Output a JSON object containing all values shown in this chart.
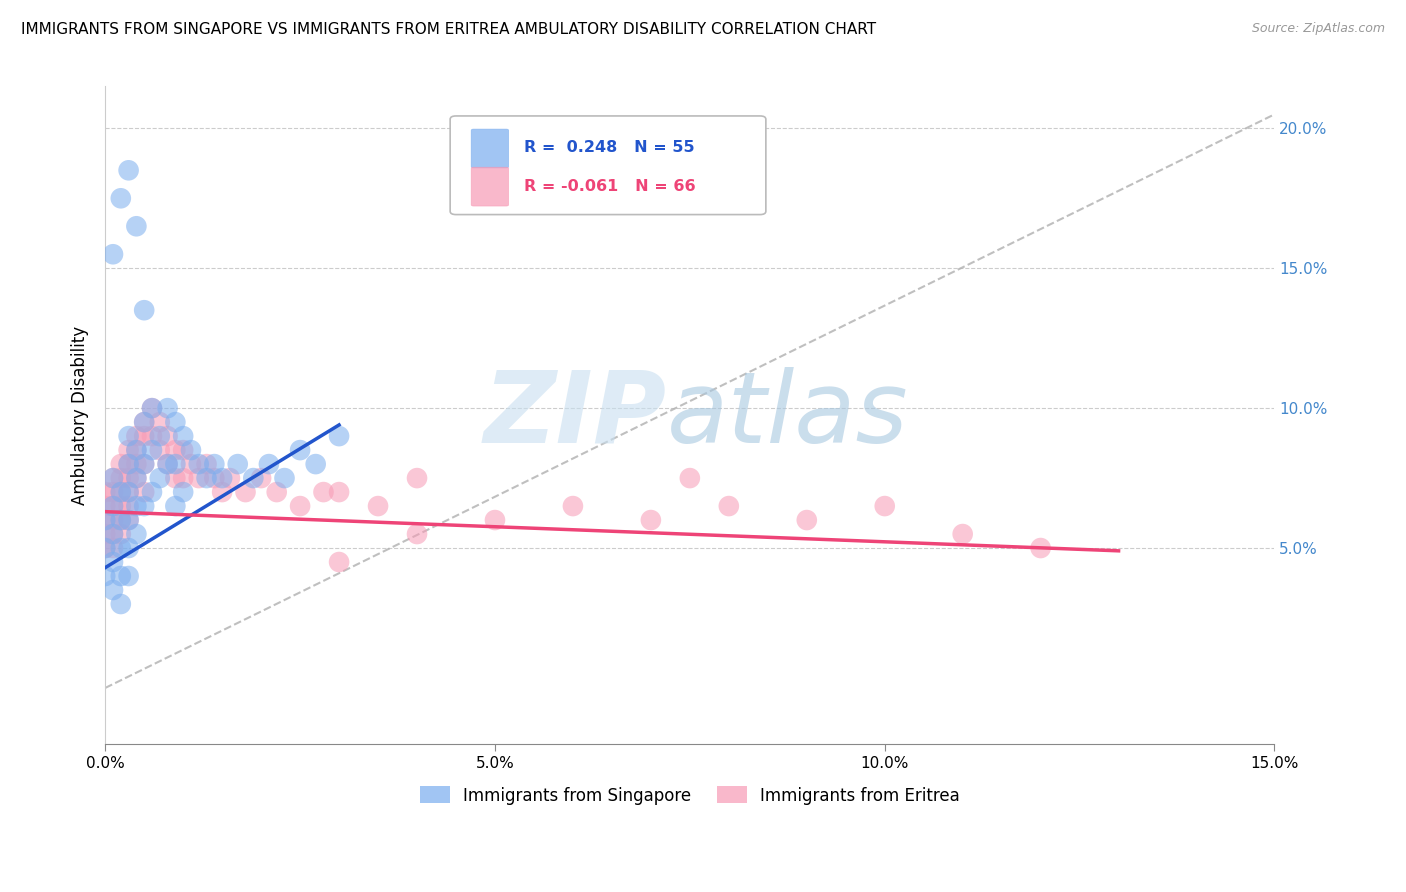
{
  "title": "IMMIGRANTS FROM SINGAPORE VS IMMIGRANTS FROM ERITREA AMBULATORY DISABILITY CORRELATION CHART",
  "source": "Source: ZipAtlas.com",
  "ylabel": "Ambulatory Disability",
  "xlim": [
    0.0,
    0.15
  ],
  "ylim": [
    -0.02,
    0.215
  ],
  "xticks": [
    0.0,
    0.05,
    0.1,
    0.15
  ],
  "xtick_labels": [
    "0.0%",
    "5.0%",
    "10.0%",
    "15.0%"
  ],
  "yticks": [
    0.05,
    0.1,
    0.15,
    0.2
  ],
  "ytick_labels_right": [
    "5.0%",
    "10.0%",
    "15.0%",
    "20.0%"
  ],
  "singapore_color": "#7aadee",
  "eritrea_color": "#f79ab5",
  "singapore_line_color": "#2255cc",
  "eritrea_line_color": "#ee4477",
  "singapore_R": 0.248,
  "singapore_N": 55,
  "eritrea_R": -0.061,
  "eritrea_N": 66,
  "sg_line_x0": 0.0,
  "sg_line_y0": 0.043,
  "sg_line_x1": 0.03,
  "sg_line_y1": 0.094,
  "er_line_x0": 0.0,
  "er_line_y0": 0.063,
  "er_line_x1": 0.13,
  "er_line_y1": 0.049,
  "diag_line_x0": 0.0,
  "diag_line_y0": 0.0,
  "diag_line_x1": 0.15,
  "diag_line_y1": 0.205,
  "singapore_x": [
    0.0,
    0.0,
    0.0,
    0.001,
    0.001,
    0.001,
    0.001,
    0.001,
    0.002,
    0.002,
    0.002,
    0.002,
    0.002,
    0.003,
    0.003,
    0.003,
    0.003,
    0.003,
    0.003,
    0.004,
    0.004,
    0.004,
    0.004,
    0.005,
    0.005,
    0.005,
    0.006,
    0.006,
    0.006,
    0.007,
    0.007,
    0.008,
    0.008,
    0.009,
    0.009,
    0.009,
    0.01,
    0.01,
    0.011,
    0.012,
    0.013,
    0.014,
    0.015,
    0.017,
    0.019,
    0.021,
    0.023,
    0.025,
    0.027,
    0.03,
    0.003,
    0.004,
    0.005,
    0.002,
    0.001
  ],
  "singapore_y": [
    0.06,
    0.05,
    0.04,
    0.075,
    0.065,
    0.055,
    0.045,
    0.035,
    0.07,
    0.06,
    0.05,
    0.04,
    0.03,
    0.09,
    0.08,
    0.07,
    0.06,
    0.05,
    0.04,
    0.085,
    0.075,
    0.065,
    0.055,
    0.095,
    0.08,
    0.065,
    0.1,
    0.085,
    0.07,
    0.09,
    0.075,
    0.1,
    0.08,
    0.095,
    0.08,
    0.065,
    0.09,
    0.07,
    0.085,
    0.08,
    0.075,
    0.08,
    0.075,
    0.08,
    0.075,
    0.08,
    0.075,
    0.085,
    0.08,
    0.09,
    0.185,
    0.165,
    0.135,
    0.175,
    0.155
  ],
  "eritrea_x": [
    0.0,
    0.0,
    0.0,
    0.0,
    0.0,
    0.001,
    0.001,
    0.001,
    0.001,
    0.001,
    0.001,
    0.002,
    0.002,
    0.002,
    0.002,
    0.002,
    0.002,
    0.003,
    0.003,
    0.003,
    0.003,
    0.003,
    0.003,
    0.004,
    0.004,
    0.004,
    0.004,
    0.005,
    0.005,
    0.005,
    0.005,
    0.006,
    0.006,
    0.007,
    0.007,
    0.008,
    0.008,
    0.009,
    0.009,
    0.01,
    0.01,
    0.011,
    0.012,
    0.013,
    0.014,
    0.015,
    0.016,
    0.018,
    0.02,
    0.022,
    0.025,
    0.028,
    0.03,
    0.035,
    0.04,
    0.05,
    0.06,
    0.07,
    0.08,
    0.09,
    0.1,
    0.11,
    0.12,
    0.03,
    0.04,
    0.075
  ],
  "eritrea_y": [
    0.07,
    0.065,
    0.06,
    0.055,
    0.05,
    0.075,
    0.07,
    0.065,
    0.06,
    0.055,
    0.05,
    0.08,
    0.075,
    0.07,
    0.065,
    0.06,
    0.055,
    0.085,
    0.08,
    0.075,
    0.07,
    0.065,
    0.06,
    0.09,
    0.085,
    0.08,
    0.075,
    0.095,
    0.09,
    0.08,
    0.07,
    0.1,
    0.09,
    0.095,
    0.085,
    0.09,
    0.08,
    0.085,
    0.075,
    0.085,
    0.075,
    0.08,
    0.075,
    0.08,
    0.075,
    0.07,
    0.075,
    0.07,
    0.075,
    0.07,
    0.065,
    0.07,
    0.045,
    0.065,
    0.055,
    0.06,
    0.065,
    0.06,
    0.065,
    0.06,
    0.065,
    0.055,
    0.05,
    0.07,
    0.075,
    0.075
  ]
}
